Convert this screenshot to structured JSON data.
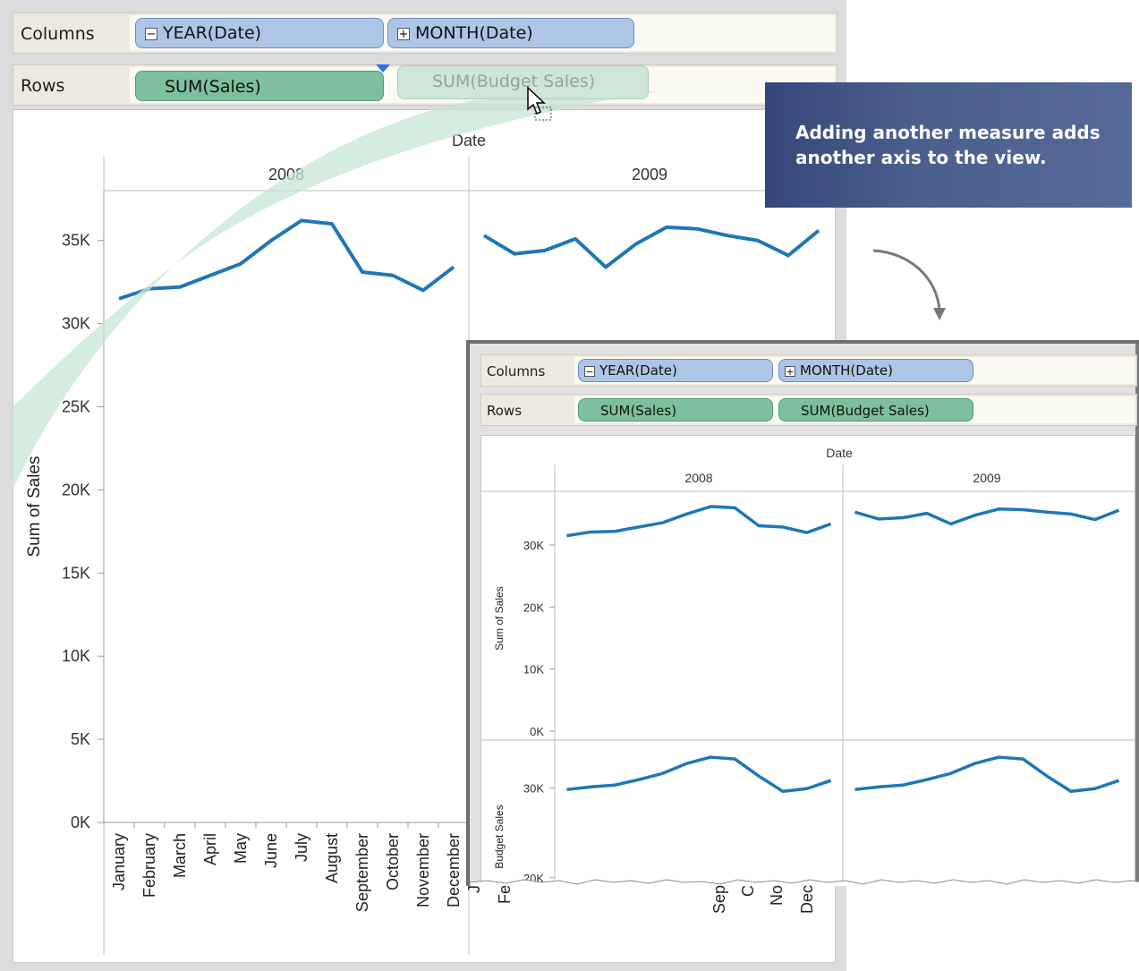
{
  "main": {
    "columns_label": "Columns",
    "rows_label": "Rows",
    "columns_pills": [
      {
        "sign": "−",
        "label": "YEAR(Date)"
      },
      {
        "sign": "+",
        "label": "MONTH(Date)"
      }
    ],
    "rows_pills": [
      {
        "label": "SUM(Sales)"
      }
    ],
    "dragging_pill": "SUM(Budget Sales)"
  },
  "callout": {
    "text": "Adding another measure adds another axis to the view."
  },
  "inset": {
    "columns_label": "Columns",
    "rows_label": "Rows",
    "columns_pills": [
      {
        "sign": "−",
        "label": "YEAR(Date)"
      },
      {
        "sign": "+",
        "label": "MONTH(Date)"
      }
    ],
    "rows_pills": [
      {
        "label": "SUM(Sales)"
      },
      {
        "label": "SUM(Budget Sales)"
      }
    ]
  },
  "colors": {
    "line": "#1f77b4",
    "drag_band": "#c7e6d6",
    "callout_bg": "#4a5f8c",
    "blue_pill": "#adc6e6",
    "green_pill": "#7dbf9e"
  },
  "icons": [
    "cursor-icon",
    "drop-indicator-icon",
    "curved-arrow-icon"
  ],
  "chart_data": [
    {
      "type": "line",
      "title": "",
      "header": "Date",
      "panes": [
        "2008",
        "2009"
      ],
      "categories": [
        "January",
        "February",
        "March",
        "April",
        "May",
        "June",
        "July",
        "August",
        "September",
        "October",
        "November",
        "December"
      ],
      "ylabel": "Sum of Sales",
      "ylim": [
        0,
        38000
      ],
      "yticks": [
        0,
        5000,
        10000,
        15000,
        20000,
        25000,
        30000,
        35000
      ],
      "ytick_labels": [
        "0K",
        "5K",
        "10K",
        "15K",
        "20K",
        "25K",
        "30K",
        "35K"
      ],
      "series": [
        {
          "pane": "2008",
          "values": [
            31500,
            32100,
            32200,
            32900,
            33600,
            35000,
            36200,
            36000,
            33100,
            32900,
            32000,
            33400
          ]
        },
        {
          "pane": "2009",
          "values": [
            35300,
            34200,
            34400,
            35100,
            33400,
            34800,
            35800,
            35700,
            35300,
            35000,
            34100,
            35600
          ]
        }
      ],
      "visible_2009_tick_labels": [
        "J",
        "Fe",
        "Sep",
        "C",
        "No",
        "Dec"
      ]
    },
    {
      "type": "line",
      "title": "",
      "header": "Date",
      "panes": [
        "2008",
        "2009"
      ],
      "rows": [
        {
          "ylabel": "Sum of Sales",
          "ylim": [
            0,
            37500
          ],
          "ytick_labels": [
            "0K",
            "10K",
            "20K",
            "30K"
          ],
          "series": [
            {
              "pane": "2008",
              "values": [
                31500,
                32100,
                32200,
                32900,
                33600,
                35000,
                36200,
                36000,
                33100,
                32900,
                32000,
                33400
              ]
            },
            {
              "pane": "2009",
              "values": [
                35300,
                34200,
                34400,
                35100,
                33400,
                34800,
                35800,
                35700,
                35300,
                35000,
                34100,
                35600
              ]
            }
          ]
        },
        {
          "ylabel": "Budget Sales",
          "ylim": [
            17000,
            34500
          ],
          "ytick_labels": [
            "20K",
            "30K"
          ],
          "series": [
            {
              "pane": "2008",
              "values": [
                29800,
                30100,
                30300,
                30900,
                31600,
                32700,
                33400,
                33200,
                31300,
                29600,
                29900,
                30800
              ]
            },
            {
              "pane": "2009",
              "values": [
                29800,
                30100,
                30300,
                30900,
                31600,
                32700,
                33400,
                33200,
                31300,
                29600,
                29900,
                30800
              ]
            }
          ]
        }
      ]
    }
  ]
}
